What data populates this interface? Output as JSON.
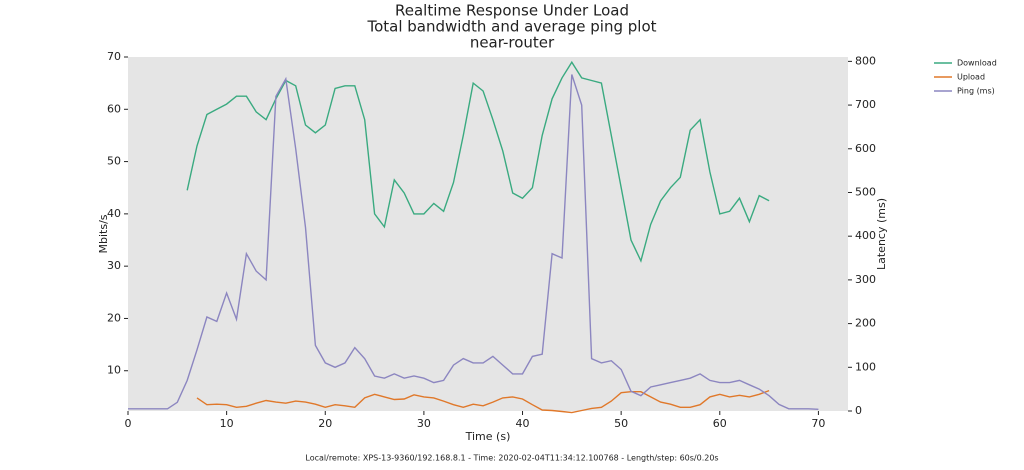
{
  "chart_data": {
    "type": "line",
    "title_lines": [
      "Realtime Response Under Load",
      "Total bandwidth and average ping plot",
      "near-router"
    ],
    "xlabel": "Time (s)",
    "ylabel": "Mbits/s",
    "y2label": "Latency (ms)",
    "footer": "Local/remote: XPS-13-9360/192.168.8.1 - Time: 2020-02-04T11:34:12.100768 - Length/step: 60s/0.20s",
    "xlim": [
      0,
      73
    ],
    "ylim": [
      2.3,
      70
    ],
    "y2lim": [
      0,
      810
    ],
    "xticks": [
      0,
      10,
      20,
      30,
      40,
      50,
      60,
      70
    ],
    "yticks": [
      10,
      20,
      30,
      40,
      50,
      60,
      70
    ],
    "y2ticks": [
      0,
      100,
      200,
      300,
      400,
      500,
      600,
      700,
      800
    ],
    "grid": false,
    "legend": "outside-upper-right",
    "x": [
      0,
      1,
      2,
      3,
      4,
      5,
      6,
      7,
      8,
      9,
      10,
      11,
      12,
      13,
      14,
      15,
      16,
      17,
      18,
      19,
      20,
      21,
      22,
      23,
      24,
      25,
      26,
      27,
      28,
      29,
      30,
      31,
      32,
      33,
      34,
      35,
      36,
      37,
      38,
      39,
      40,
      41,
      42,
      43,
      44,
      45,
      46,
      47,
      48,
      49,
      50,
      51,
      52,
      53,
      54,
      55,
      56,
      57,
      58,
      59,
      60,
      61,
      62,
      63,
      64,
      65,
      66,
      67,
      68,
      69,
      70
    ],
    "series": [
      {
        "name": "Download",
        "color": "#3aaa80",
        "axis": "y",
        "values": [
          null,
          null,
          null,
          null,
          null,
          null,
          44.5,
          53,
          59,
          60,
          61,
          62.5,
          62.5,
          59.5,
          58,
          62,
          65.5,
          64.5,
          57,
          55.5,
          57,
          64,
          64.5,
          64.5,
          58,
          40,
          37.5,
          46.5,
          44,
          40,
          40,
          42,
          40.5,
          46,
          55,
          65,
          63.5,
          58,
          52,
          44,
          43,
          45,
          55,
          62,
          66,
          69,
          66,
          65.5,
          65,
          55,
          45,
          35,
          31,
          38,
          42.5,
          45,
          47,
          56,
          58,
          48,
          40,
          40.5,
          43,
          38.5,
          43.5,
          42.5,
          null,
          null,
          null,
          null,
          null
        ]
      },
      {
        "name": "Upload",
        "color": "#e0782a",
        "axis": "y",
        "values": [
          null,
          null,
          null,
          null,
          null,
          null,
          null,
          4.8,
          3.5,
          3.6,
          3.5,
          3,
          3.2,
          3.8,
          4.3,
          4,
          3.8,
          4.2,
          4,
          3.6,
          3,
          3.5,
          3.3,
          3,
          4.8,
          5.5,
          5,
          4.5,
          4.6,
          5.4,
          5,
          4.8,
          4.2,
          3.5,
          3,
          3.6,
          3.3,
          4,
          4.8,
          5,
          4.6,
          3.5,
          2.5,
          2.4,
          2.2,
          2,
          2.4,
          2.8,
          3,
          4.2,
          5.8,
          6,
          6,
          5,
          4,
          3.6,
          3,
          3,
          3.5,
          5,
          5.5,
          5,
          5.3,
          5,
          5.5,
          6.2,
          null,
          null,
          null,
          null,
          null
        ]
      },
      {
        "name": "Ping (ms)",
        "color": "#8c86c0",
        "axis": "y2",
        "values": [
          5,
          5,
          5,
          5,
          5,
          20,
          70,
          140,
          215,
          205,
          270,
          210,
          360,
          320,
          300,
          720,
          760,
          600,
          420,
          150,
          110,
          100,
          110,
          145,
          120,
          80,
          75,
          85,
          75,
          80,
          75,
          65,
          70,
          105,
          120,
          110,
          110,
          125,
          105,
          85,
          85,
          125,
          130,
          360,
          350,
          770,
          700,
          120,
          110,
          115,
          95,
          45,
          35,
          55,
          60,
          65,
          70,
          75,
          85,
          70,
          65,
          65,
          70,
          60,
          50,
          35,
          15,
          5,
          5,
          5,
          4
        ]
      }
    ]
  }
}
